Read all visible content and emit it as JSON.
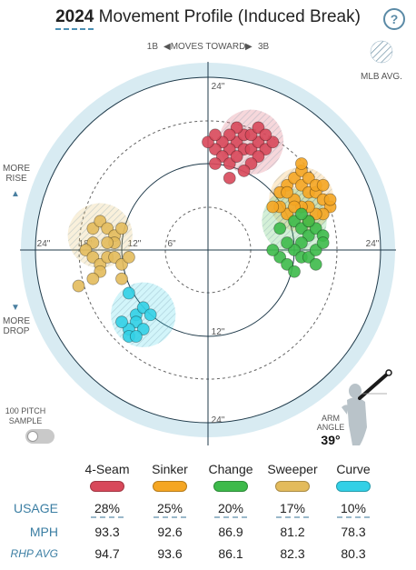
{
  "header": {
    "year": "2024",
    "title": "Movement Profile (Induced Break)",
    "help_label": "?"
  },
  "direction": {
    "left": "1B",
    "center": "MOVES TOWARD",
    "right": "3B"
  },
  "legend": {
    "mlb_avg_label": "MLB AVG."
  },
  "side_labels": {
    "rise_line1": "MORE",
    "rise_line2": "RISE",
    "drop_line1": "MORE",
    "drop_line2": "DROP"
  },
  "ring_labels": {
    "top": "24\"",
    "bottom12": "12\"",
    "bottom24": "24\"",
    "left24": "24\"",
    "left18": "18\"",
    "left12": "12\"",
    "left6": "6\"",
    "right24": "24\""
  },
  "sample": {
    "line1": "100 PITCH",
    "line2": "SAMPLE",
    "toggle": "off"
  },
  "arm_angle": {
    "label_line1": "ARM",
    "label_line2": "ANGLE",
    "value": "39°"
  },
  "table": {
    "row_labels": {
      "usage": "USAGE",
      "mph": "MPH",
      "rhp_avg": "RHP AVG"
    },
    "pitches": [
      {
        "name": "4-Seam",
        "color": "#d8485a",
        "usage": "28%",
        "mph": "93.3",
        "rhp_avg": "94.7"
      },
      {
        "name": "Sinker",
        "color": "#f5a623",
        "usage": "25%",
        "mph": "92.6",
        "rhp_avg": "93.6"
      },
      {
        "name": "Change",
        "color": "#3dba4a",
        "usage": "20%",
        "mph": "86.9",
        "rhp_avg": "86.1"
      },
      {
        "name": "Sweeper",
        "color": "#e3bb5c",
        "usage": "17%",
        "mph": "81.2",
        "rhp_avg": "82.3"
      },
      {
        "name": "Curve",
        "color": "#32d0e6",
        "usage": "10%",
        "mph": "78.3",
        "rhp_avg": "80.3"
      }
    ]
  },
  "chart_data": {
    "type": "scatter",
    "title": "2024 Movement Profile (Induced Break)",
    "units": "inches",
    "rings": [
      6,
      12,
      18,
      24
    ],
    "axis_range": [
      -30,
      30
    ],
    "mlb_avg": [
      {
        "pitch": "4-Seam",
        "x": 6,
        "y": 15
      },
      {
        "pitch": "Sinker",
        "x": 13,
        "y": 7
      },
      {
        "pitch": "Change",
        "x": 12,
        "y": 4
      },
      {
        "pitch": "Sweeper",
        "x": -15,
        "y": 2
      },
      {
        "pitch": "Curve",
        "x": -9,
        "y": -9
      }
    ],
    "series": [
      {
        "name": "4-Seam",
        "points": [
          [
            4,
            15
          ],
          [
            3,
            14
          ],
          [
            5,
            14
          ],
          [
            6,
            14
          ],
          [
            7,
            15
          ],
          [
            8,
            14
          ],
          [
            9,
            15
          ],
          [
            7,
            13
          ],
          [
            5,
            16
          ],
          [
            4,
            17
          ],
          [
            3,
            16
          ],
          [
            2,
            15
          ],
          [
            1,
            14
          ],
          [
            2,
            13
          ],
          [
            3,
            12
          ],
          [
            6,
            12
          ],
          [
            5,
            11
          ],
          [
            3,
            10
          ],
          [
            1,
            12
          ],
          [
            0,
            15
          ],
          [
            1,
            16
          ],
          [
            6,
            16
          ],
          [
            7,
            17
          ],
          [
            4,
            13
          ],
          [
            8,
            16
          ]
        ]
      },
      {
        "name": "Sinker",
        "points": [
          [
            11,
            9
          ],
          [
            12,
            10
          ],
          [
            13,
            9
          ],
          [
            14,
            8
          ],
          [
            15,
            8
          ],
          [
            16,
            7
          ],
          [
            17,
            6
          ],
          [
            16,
            5
          ],
          [
            15,
            5
          ],
          [
            14,
            6
          ],
          [
            13,
            6
          ],
          [
            12,
            7
          ],
          [
            11,
            5
          ],
          [
            10,
            8
          ],
          [
            13,
            11
          ],
          [
            14,
            10
          ],
          [
            17,
            7
          ],
          [
            15,
            9
          ],
          [
            12,
            6
          ],
          [
            10,
            6
          ],
          [
            11,
            8
          ],
          [
            16,
            9
          ],
          [
            14,
            4
          ],
          [
            13,
            12
          ],
          [
            9,
            6
          ]
        ]
      },
      {
        "name": "Change",
        "points": [
          [
            12,
            4
          ],
          [
            13,
            3
          ],
          [
            14,
            2
          ],
          [
            15,
            3
          ],
          [
            16,
            2
          ],
          [
            13,
            1
          ],
          [
            12,
            0
          ],
          [
            11,
            1
          ],
          [
            10,
            -1
          ],
          [
            11,
            -2
          ],
          [
            12,
            -3
          ],
          [
            13,
            -1
          ],
          [
            14,
            -1
          ],
          [
            15,
            0
          ],
          [
            15,
            -2
          ],
          [
            14,
            4
          ],
          [
            13,
            5
          ],
          [
            9,
            0
          ],
          [
            10,
            3
          ],
          [
            16,
            1
          ]
        ]
      },
      {
        "name": "Sweeper",
        "points": [
          [
            -16,
            3
          ],
          [
            -15,
            4
          ],
          [
            -14,
            3
          ],
          [
            -13,
            2
          ],
          [
            -12,
            3
          ],
          [
            -13,
            1
          ],
          [
            -14,
            1
          ],
          [
            -16,
            1
          ],
          [
            -17,
            0
          ],
          [
            -16,
            -1
          ],
          [
            -15,
            -2
          ],
          [
            -14,
            -1
          ],
          [
            -13,
            -1
          ],
          [
            -12,
            -2
          ],
          [
            -15,
            -3
          ],
          [
            -16,
            -4
          ],
          [
            -18,
            -5
          ],
          [
            -12,
            -4
          ],
          [
            -11,
            -1
          ]
        ]
      },
      {
        "name": "Curve",
        "points": [
          [
            -11,
            -6
          ],
          [
            -10,
            -9
          ],
          [
            -9,
            -8
          ],
          [
            -10,
            -10
          ],
          [
            -11,
            -11
          ],
          [
            -12,
            -10
          ],
          [
            -11,
            -12
          ],
          [
            -9,
            -11
          ],
          [
            -10,
            -12
          ],
          [
            -8,
            -9
          ]
        ]
      }
    ]
  }
}
